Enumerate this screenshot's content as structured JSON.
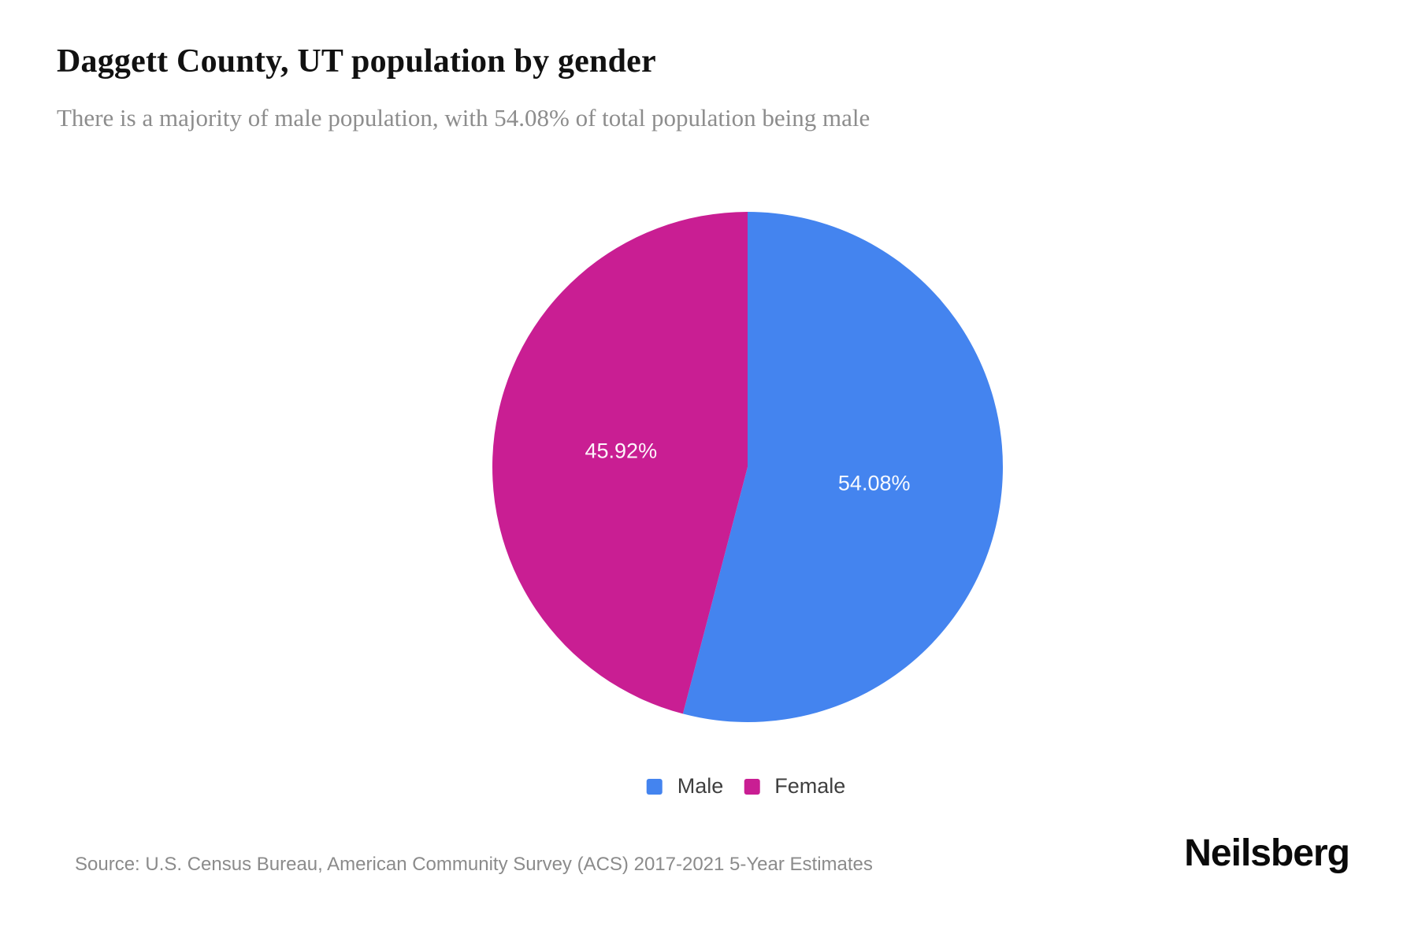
{
  "page": {
    "background": "#ffffff"
  },
  "header": {
    "title": "Daggett County, UT population by gender",
    "subtitle": "There is a majority of male population, with 54.08% of total population being male"
  },
  "chart_data": {
    "type": "pie",
    "title": "Daggett County, UT population by gender",
    "units": "percent of total population",
    "start_angle": "12-oclock",
    "direction": "clockwise",
    "slices": [
      {
        "label": "Male",
        "value": 54.08,
        "display": "54.08%",
        "color": "#4484EF"
      },
      {
        "label": "Female",
        "value": 45.92,
        "display": "45.92%",
        "color": "#C91E93"
      }
    ],
    "slice_label_color": "#ffffff",
    "legend_position": "bottom-center"
  },
  "footer": {
    "source": "Source: U.S. Census Bureau, American Community Survey (ACS) 2017-2021 5-Year Estimates",
    "brand": "Neilsberg"
  }
}
